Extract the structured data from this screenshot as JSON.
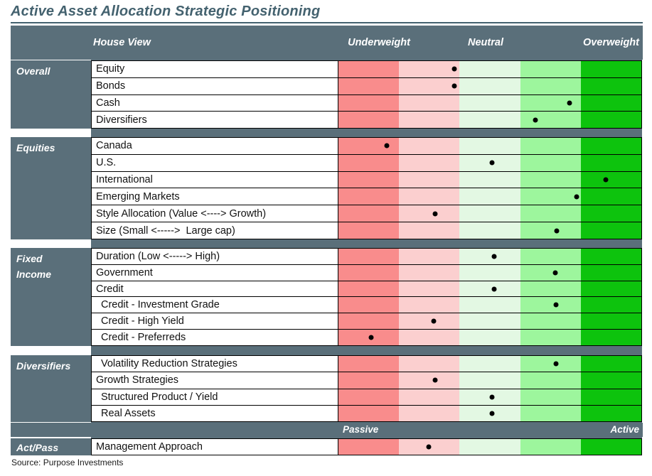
{
  "title": "Active Asset Allocation Strategic Positioning",
  "source": "Source: Purpose Investments",
  "header": {
    "house_view": "House View",
    "underweight": "Underweight",
    "neutral": "Neutral",
    "overweight": "Overweight"
  },
  "scale_bar": {
    "passive": "Passive",
    "active": "Active"
  },
  "colors": {
    "slate": "#5A6F7A",
    "title": "#44626F",
    "dot": "#000000",
    "bands": [
      "#F98C8C",
      "#FBCFCF",
      "#E3F8E3",
      "#9DF69D",
      "#0DC30D"
    ]
  },
  "sections": [
    {
      "category_lines": [
        "Overall"
      ],
      "rows": [
        {
          "label": "Equity",
          "dot_pct": 38.2
        },
        {
          "label": "Bonds",
          "dot_pct": 38.2
        },
        {
          "label": "Cash",
          "dot_pct": 76.3
        },
        {
          "label": "Diversifiers",
          "dot_pct": 65.1
        }
      ]
    },
    {
      "category_lines": [
        "Equities"
      ],
      "rows": [
        {
          "label": "Canada",
          "dot_pct": 15.9
        },
        {
          "label": "U.S.",
          "dot_pct": 50.8
        },
        {
          "label": "International",
          "dot_pct": 88.3
        },
        {
          "label": "Emerging Markets",
          "dot_pct": 78.7
        },
        {
          "label": "Style Allocation (Value <----> Growth)",
          "dot_pct": 31.9
        },
        {
          "label": "Size (Small <----->  Large cap)",
          "dot_pct": 72.1
        }
      ]
    },
    {
      "category_lines": [
        "Fixed",
        "Income"
      ],
      "rows": [
        {
          "label": "Duration (Low <-----> High)",
          "dot_pct": 51.5
        },
        {
          "label": "Government",
          "dot_pct": 71.7
        },
        {
          "label": "Credit",
          "dot_pct": 51.5
        },
        {
          "label": "Credit - Investment Grade",
          "dot_pct": 71.9,
          "indent": true
        },
        {
          "label": "Credit - High Yield",
          "dot_pct": 31.4,
          "indent": true
        },
        {
          "label": "Credit - Preferreds",
          "dot_pct": 10.8,
          "indent": true
        }
      ]
    },
    {
      "category_lines": [
        "Diversifiers"
      ],
      "rows": [
        {
          "label": "Volatility Reduction Strategies",
          "dot_pct": 71.9,
          "indent": true
        },
        {
          "label": "Growth Strategies",
          "dot_pct": 31.9
        },
        {
          "label": "Structured Product / Yield",
          "dot_pct": 50.6,
          "indent": true
        },
        {
          "label": "Real Assets",
          "dot_pct": 50.6,
          "indent": true
        }
      ]
    },
    {
      "category_lines": [
        "Act/Pass"
      ],
      "rows": [
        {
          "label": "Management Approach",
          "dot_pct": 29.7
        }
      ]
    }
  ],
  "chart_data": {
    "type": "table",
    "title": "Active Asset Allocation Strategic Positioning",
    "columns": [
      "Underweight",
      "Neutral",
      "Overweight"
    ],
    "scale": {
      "min": -2,
      "max": 2,
      "note": "Dot position mapped from Underweight (-2) through Neutral (0) to Overweight (+2); the Management Approach row is scaled Passive (-2) to Active (+2)."
    },
    "rows": [
      {
        "group": "Overall",
        "label": "Equity",
        "position": -0.6
      },
      {
        "group": "Overall",
        "label": "Bonds",
        "position": -0.6
      },
      {
        "group": "Overall",
        "label": "Cash",
        "position": 1.3
      },
      {
        "group": "Overall",
        "label": "Diversifiers",
        "position": 0.8
      },
      {
        "group": "Equities",
        "label": "Canada",
        "position": -1.7
      },
      {
        "group": "Equities",
        "label": "U.S.",
        "position": 0.0
      },
      {
        "group": "Equities",
        "label": "International",
        "position": 1.9
      },
      {
        "group": "Equities",
        "label": "Emerging Markets",
        "position": 1.4
      },
      {
        "group": "Equities",
        "label": "Style Allocation (Value <----> Growth)",
        "position": -0.9
      },
      {
        "group": "Equities",
        "label": "Size (Small <----->  Large cap)",
        "position": 1.1
      },
      {
        "group": "Fixed Income",
        "label": "Duration (Low <-----> High)",
        "position": 0.1
      },
      {
        "group": "Fixed Income",
        "label": "Government",
        "position": 1.1
      },
      {
        "group": "Fixed Income",
        "label": "Credit",
        "position": 0.1
      },
      {
        "group": "Fixed Income",
        "label": "Credit - Investment Grade",
        "position": 1.1
      },
      {
        "group": "Fixed Income",
        "label": "Credit - High Yield",
        "position": -0.9
      },
      {
        "group": "Fixed Income",
        "label": "Credit - Preferreds",
        "position": -2.0
      },
      {
        "group": "Diversifiers",
        "label": "Volatility Reduction Strategies",
        "position": 1.1
      },
      {
        "group": "Diversifiers",
        "label": "Growth Strategies",
        "position": -0.9
      },
      {
        "group": "Diversifiers",
        "label": "Structured Product / Yield",
        "position": 0.0
      },
      {
        "group": "Diversifiers",
        "label": "Real Assets",
        "position": 0.0
      },
      {
        "group": "Act/Pass",
        "label": "Management Approach",
        "position": -1.0
      }
    ]
  }
}
